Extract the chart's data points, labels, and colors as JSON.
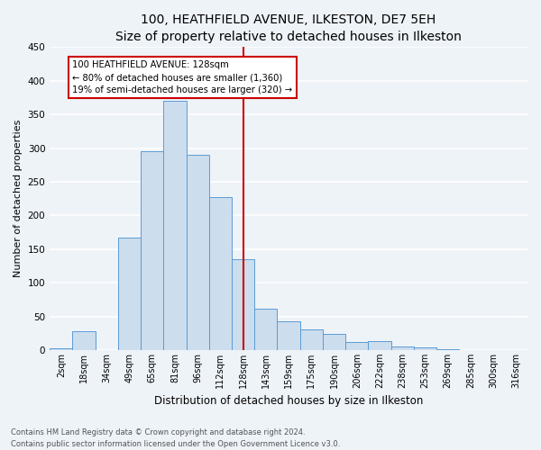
{
  "title": "100, HEATHFIELD AVENUE, ILKESTON, DE7 5EH",
  "subtitle": "Size of property relative to detached houses in Ilkeston",
  "xlabel": "Distribution of detached houses by size in Ilkeston",
  "ylabel": "Number of detached properties",
  "bar_labels": [
    "2sqm",
    "18sqm",
    "34sqm",
    "49sqm",
    "65sqm",
    "81sqm",
    "96sqm",
    "112sqm",
    "128sqm",
    "143sqm",
    "159sqm",
    "175sqm",
    "190sqm",
    "206sqm",
    "222sqm",
    "238sqm",
    "253sqm",
    "269sqm",
    "285sqm",
    "300sqm",
    "316sqm"
  ],
  "bar_values": [
    2,
    28,
    0,
    167,
    295,
    370,
    290,
    227,
    135,
    61,
    43,
    30,
    24,
    12,
    13,
    5,
    4,
    1,
    0,
    0,
    0
  ],
  "bar_color": "#ccdded",
  "bar_edge_color": "#5b9bd5",
  "vline_label_idx": 8,
  "vline_color": "#cc0000",
  "annotation_title": "100 HEATHFIELD AVENUE: 128sqm",
  "annotation_line1": "← 80% of detached houses are smaller (1,360)",
  "annotation_line2": "19% of semi-detached houses are larger (320) →",
  "annotation_box_color": "#cc0000",
  "ylim": [
    0,
    450
  ],
  "yticks": [
    0,
    50,
    100,
    150,
    200,
    250,
    300,
    350,
    400,
    450
  ],
  "footer_line1": "Contains HM Land Registry data © Crown copyright and database right 2024.",
  "footer_line2": "Contains public sector information licensed under the Open Government Licence v3.0.",
  "bg_color": "#eef3f8",
  "grid_color": "#ffffff",
  "title_fontsize": 10,
  "axis_label_fontsize": 8,
  "tick_fontsize": 7
}
